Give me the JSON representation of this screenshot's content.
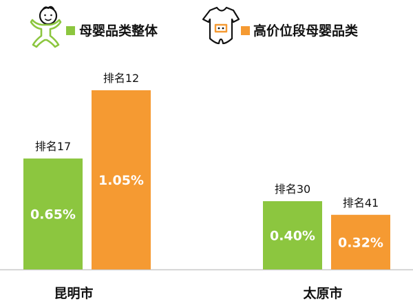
{
  "chart_data": {
    "type": "bar",
    "categories": [
      "昆明市",
      "太原市"
    ],
    "series": [
      {
        "name": "母婴品类整体",
        "color": "#8cc63f",
        "values": [
          0.65,
          0.4
        ],
        "value_labels": [
          "0.65%",
          "0.40%"
        ],
        "rank_labels": [
          "排名17",
          "排名30"
        ],
        "icon": "baby-icon"
      },
      {
        "name": "高价位段母婴品类",
        "color": "#f59a32",
        "values": [
          1.05,
          0.32
        ],
        "value_labels": [
          "1.05%",
          "0.32%"
        ],
        "rank_labels": [
          "排名12",
          "排名41"
        ],
        "icon": "onesie-icon"
      }
    ],
    "unit": "%",
    "ylim": [
      0,
      1.05
    ],
    "grid": false,
    "legend_position": "top",
    "baseline_color": "#c8c8c8"
  }
}
